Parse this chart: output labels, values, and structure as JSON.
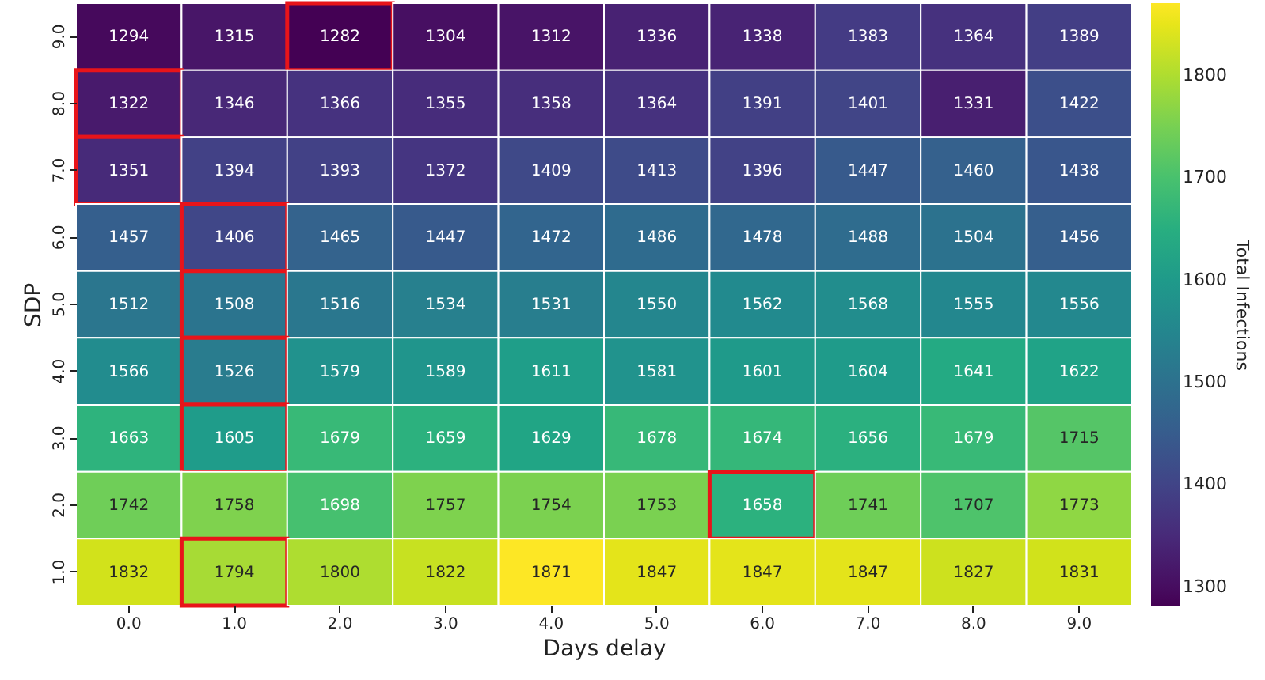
{
  "chart_data": {
    "type": "heatmap",
    "xlabel": "Days delay",
    "ylabel": "SDP",
    "clabel": "Total Infections",
    "categories": [
      "0.0",
      "1.0",
      "2.0",
      "3.0",
      "4.0",
      "5.0",
      "6.0",
      "7.0",
      "8.0",
      "9.0"
    ],
    "y_categories": [
      "9.0",
      "8.0",
      "7.0",
      "6.0",
      "5.0",
      "4.0",
      "3.0",
      "2.0",
      "1.0"
    ],
    "cells": [
      [
        1294,
        1315,
        1282,
        1304,
        1312,
        1336,
        1338,
        1383,
        1364,
        1389
      ],
      [
        1322,
        1346,
        1366,
        1355,
        1358,
        1364,
        1391,
        1401,
        1331,
        1422
      ],
      [
        1351,
        1394,
        1393,
        1372,
        1409,
        1413,
        1396,
        1447,
        1460,
        1438
      ],
      [
        1457,
        1406,
        1465,
        1447,
        1472,
        1486,
        1478,
        1488,
        1504,
        1456
      ],
      [
        1512,
        1508,
        1516,
        1534,
        1531,
        1550,
        1562,
        1568,
        1555,
        1556
      ],
      [
        1566,
        1526,
        1579,
        1589,
        1611,
        1581,
        1601,
        1604,
        1641,
        1622
      ],
      [
        1663,
        1605,
        1679,
        1659,
        1629,
        1678,
        1674,
        1656,
        1679,
        1715
      ],
      [
        1742,
        1758,
        1698,
        1757,
        1754,
        1753,
        1658,
        1741,
        1707,
        1773
      ],
      [
        1832,
        1794,
        1800,
        1822,
        1871,
        1847,
        1847,
        1847,
        1827,
        1831
      ]
    ],
    "data_labels": true,
    "clim": [
      1282,
      1871
    ],
    "cticks": [
      1300,
      1400,
      1500,
      1600,
      1700,
      1800
    ]
  }
}
